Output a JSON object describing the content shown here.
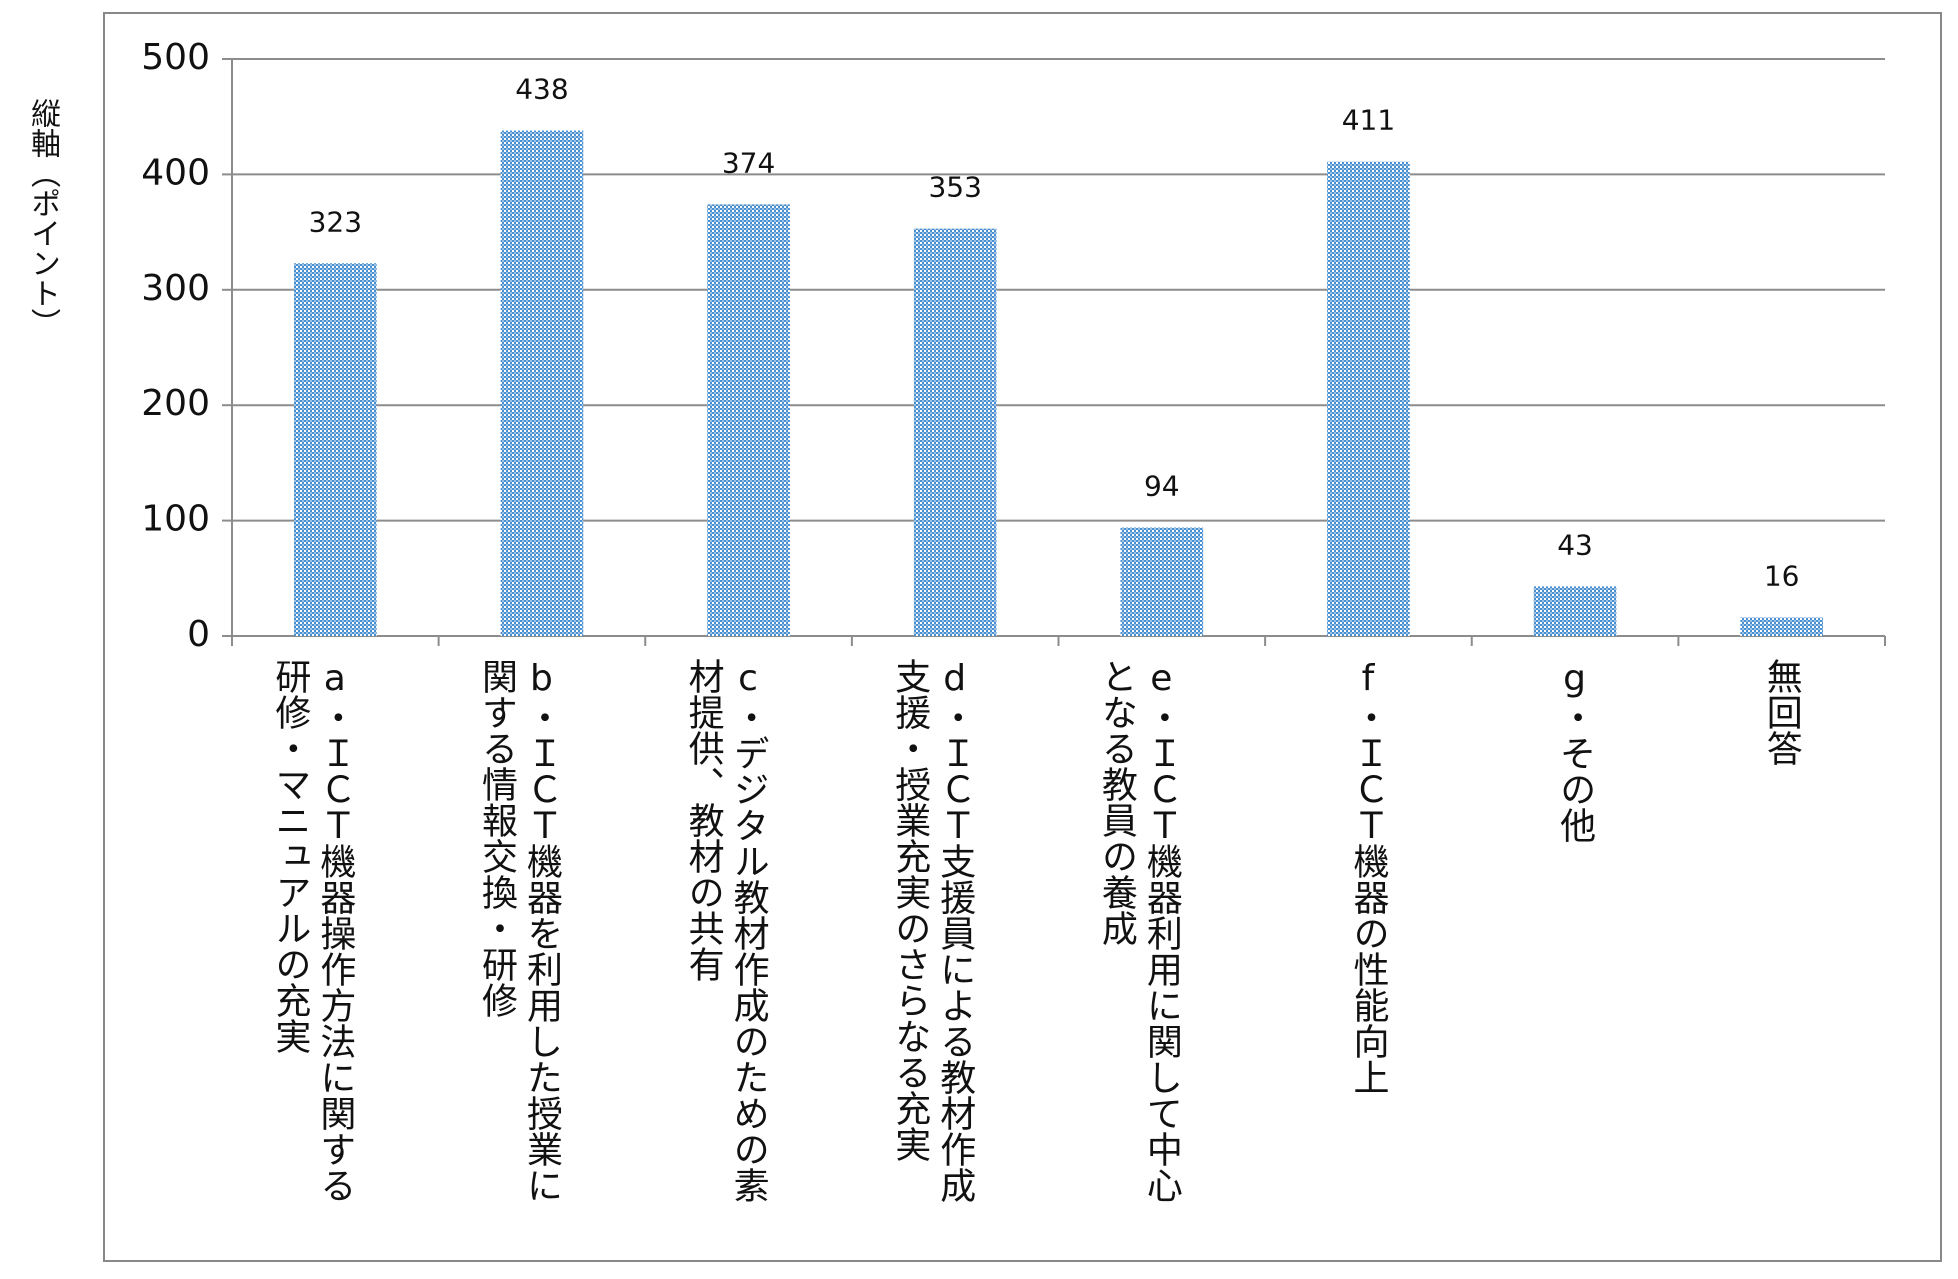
{
  "chart_data": {
    "type": "bar",
    "y_label": "縦軸（ポイント）",
    "categories": [
      "a・ＩＣＴ機器操作方法に関する研修・マニュアルの充実",
      "b・ＩＣＴ機器を利用した授業に関する情報交換・研修",
      "c・デジタル教材作成のための素材提供、教材の共有",
      "d・ＩＣＴ支援員による教材作成支援・授業充実のさらなる充実",
      "e・ＩＣＴ機器利用に関して中心となる教員の養成",
      "f・ＩＣＴ機器の性能向上",
      "g・その他",
      "無回答"
    ],
    "values": [
      323,
      438,
      374,
      353,
      94,
      411,
      43,
      16
    ],
    "color": "#4a8fd0",
    "ylim": [
      0,
      500
    ],
    "yticks": [
      0,
      100,
      200,
      300,
      400,
      500
    ],
    "grid": true
  }
}
